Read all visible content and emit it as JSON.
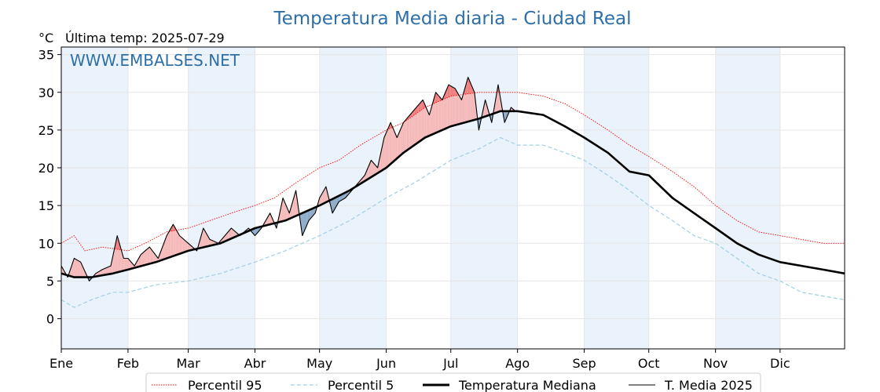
{
  "chart_data": {
    "type": "line",
    "title": "Temperatura Media diaria - Ciudad Real",
    "unit": "°C",
    "last_temp_label": "Última temp: 2025-07-29",
    "watermark": "WWW.EMBALSES.NET",
    "xlabels": [
      "Ene",
      "Feb",
      "Mar",
      "Abr",
      "May",
      "Jun",
      "Jul",
      "Ago",
      "Sep",
      "Oct",
      "Nov",
      "Dic"
    ],
    "month_start_days": [
      1,
      32,
      60,
      91,
      121,
      152,
      182,
      213,
      244,
      274,
      305,
      335
    ],
    "days_in_year": 365,
    "ylim": [
      -4,
      36
    ],
    "yticks": [
      0,
      5,
      10,
      15,
      20,
      25,
      30,
      35
    ],
    "grid": true,
    "legend_position": "bottom",
    "colors": {
      "p95": "#ff0000",
      "p5": "#9fd0e6",
      "median": "#000000",
      "current": "#000000",
      "above_fill": "#f5b8b8",
      "above_p95_fill": "#f07c7c",
      "below_fill": "#8aaac8",
      "band_fill": "#eaf2fb",
      "title": "#2e6fa7"
    },
    "series": [
      {
        "name": "Percentil 95",
        "style": "dotted",
        "points": [
          [
            1,
            10
          ],
          [
            7,
            11
          ],
          [
            12,
            9
          ],
          [
            20,
            9.5
          ],
          [
            32,
            9
          ],
          [
            40,
            10
          ],
          [
            50,
            11.5
          ],
          [
            60,
            12
          ],
          [
            70,
            13
          ],
          [
            80,
            14
          ],
          [
            91,
            15
          ],
          [
            100,
            16
          ],
          [
            110,
            18
          ],
          [
            121,
            20
          ],
          [
            130,
            21
          ],
          [
            140,
            23
          ],
          [
            152,
            25
          ],
          [
            160,
            26
          ],
          [
            170,
            28
          ],
          [
            182,
            29.5
          ],
          [
            195,
            30
          ],
          [
            213,
            30
          ],
          [
            225,
            29.5
          ],
          [
            235,
            28.5
          ],
          [
            244,
            27
          ],
          [
            255,
            25
          ],
          [
            265,
            23
          ],
          [
            274,
            21.5
          ],
          [
            285,
            19.5
          ],
          [
            295,
            17.5
          ],
          [
            305,
            15
          ],
          [
            315,
            13
          ],
          [
            325,
            11.5
          ],
          [
            335,
            11
          ],
          [
            345,
            10.5
          ],
          [
            355,
            10
          ],
          [
            365,
            10
          ]
        ]
      },
      {
        "name": "Percentil 5",
        "style": "dashed",
        "points": [
          [
            1,
            2.5
          ],
          [
            7,
            1.5
          ],
          [
            15,
            2.5
          ],
          [
            25,
            3.5
          ],
          [
            32,
            3.5
          ],
          [
            45,
            4.5
          ],
          [
            60,
            5
          ],
          [
            75,
            6
          ],
          [
            91,
            7.5
          ],
          [
            105,
            9
          ],
          [
            121,
            11
          ],
          [
            135,
            13
          ],
          [
            152,
            16
          ],
          [
            165,
            18
          ],
          [
            182,
            21
          ],
          [
            195,
            22.5
          ],
          [
            205,
            24
          ],
          [
            213,
            23
          ],
          [
            225,
            23
          ],
          [
            235,
            22
          ],
          [
            244,
            21
          ],
          [
            255,
            19
          ],
          [
            265,
            17
          ],
          [
            274,
            15
          ],
          [
            285,
            13
          ],
          [
            295,
            11
          ],
          [
            305,
            10
          ],
          [
            315,
            8
          ],
          [
            325,
            6
          ],
          [
            335,
            5
          ],
          [
            345,
            3.5
          ],
          [
            355,
            3
          ],
          [
            365,
            2.5
          ]
        ]
      },
      {
        "name": "Temperatura Mediana",
        "style": "solid",
        "points": [
          [
            1,
            6
          ],
          [
            7,
            5.5
          ],
          [
            15,
            5.5
          ],
          [
            25,
            6
          ],
          [
            32,
            6.5
          ],
          [
            45,
            7.5
          ],
          [
            60,
            9
          ],
          [
            75,
            10
          ],
          [
            91,
            12
          ],
          [
            105,
            13
          ],
          [
            121,
            15
          ],
          [
            135,
            17
          ],
          [
            152,
            20
          ],
          [
            160,
            22
          ],
          [
            170,
            24
          ],
          [
            182,
            25.5
          ],
          [
            195,
            26.5
          ],
          [
            205,
            27.5
          ],
          [
            213,
            27.5
          ],
          [
            225,
            27
          ],
          [
            235,
            25.5
          ],
          [
            244,
            24
          ],
          [
            255,
            22
          ],
          [
            265,
            19.5
          ],
          [
            274,
            19
          ],
          [
            285,
            16
          ],
          [
            295,
            14
          ],
          [
            305,
            12
          ],
          [
            315,
            10
          ],
          [
            325,
            8.5
          ],
          [
            335,
            7.5
          ],
          [
            345,
            7
          ],
          [
            355,
            6.5
          ],
          [
            365,
            6
          ]
        ]
      },
      {
        "name": "T. Media 2025",
        "style": "solid",
        "points": [
          [
            1,
            7
          ],
          [
            4,
            5.5
          ],
          [
            7,
            8
          ],
          [
            10,
            7.5
          ],
          [
            14,
            5
          ],
          [
            17,
            6
          ],
          [
            20,
            6.5
          ],
          [
            24,
            7
          ],
          [
            27,
            11
          ],
          [
            30,
            8
          ],
          [
            32,
            8
          ],
          [
            35,
            7
          ],
          [
            38,
            8.5
          ],
          [
            42,
            9.5
          ],
          [
            46,
            8
          ],
          [
            50,
            11
          ],
          [
            53,
            12.5
          ],
          [
            56,
            11
          ],
          [
            60,
            10
          ],
          [
            64,
            9
          ],
          [
            67,
            12
          ],
          [
            70,
            10.5
          ],
          [
            74,
            10
          ],
          [
            77,
            11
          ],
          [
            80,
            12
          ],
          [
            84,
            11
          ],
          [
            88,
            12
          ],
          [
            91,
            11
          ],
          [
            94,
            12
          ],
          [
            98,
            14
          ],
          [
            101,
            12
          ],
          [
            104,
            16
          ],
          [
            107,
            14
          ],
          [
            110,
            17
          ],
          [
            113,
            11
          ],
          [
            116,
            13
          ],
          [
            119,
            14
          ],
          [
            121,
            16
          ],
          [
            124,
            17.5
          ],
          [
            127,
            14
          ],
          [
            130,
            15.5
          ],
          [
            133,
            16
          ],
          [
            136,
            17
          ],
          [
            139,
            18
          ],
          [
            142,
            19
          ],
          [
            145,
            21
          ],
          [
            148,
            20
          ],
          [
            151,
            24
          ],
          [
            154,
            26
          ],
          [
            157,
            24
          ],
          [
            160,
            26
          ],
          [
            163,
            27
          ],
          [
            166,
            28
          ],
          [
            169,
            29
          ],
          [
            172,
            27
          ],
          [
            175,
            30
          ],
          [
            178,
            29
          ],
          [
            181,
            31
          ],
          [
            184,
            30.5
          ],
          [
            187,
            29
          ],
          [
            190,
            32
          ],
          [
            193,
            30
          ],
          [
            195,
            25
          ],
          [
            198,
            29
          ],
          [
            201,
            26
          ],
          [
            204,
            31
          ],
          [
            207,
            26
          ],
          [
            210,
            28
          ],
          [
            212,
            27.5
          ]
        ]
      }
    ]
  }
}
